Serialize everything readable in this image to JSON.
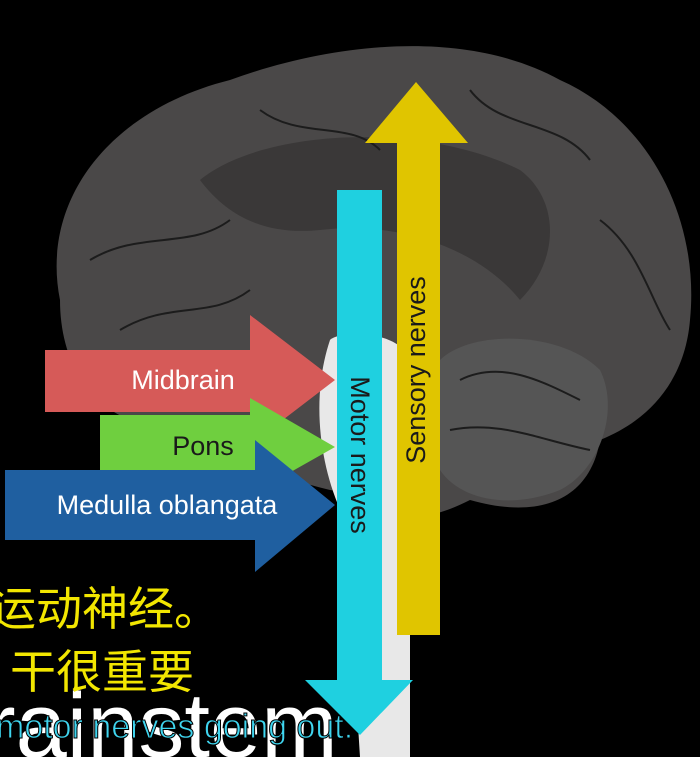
{
  "labels": {
    "midbrain": "Midbrain",
    "pons": "Pons",
    "medulla": "Medulla oblangata",
    "motor": "Motor nerves",
    "sensory": "Sensory nerves"
  },
  "subtitles": {
    "background_word": "rainstem",
    "chinese_line_1": "运动神经。",
    "chinese_line_2": "干很重要",
    "english": "motor nerves going out."
  }
}
